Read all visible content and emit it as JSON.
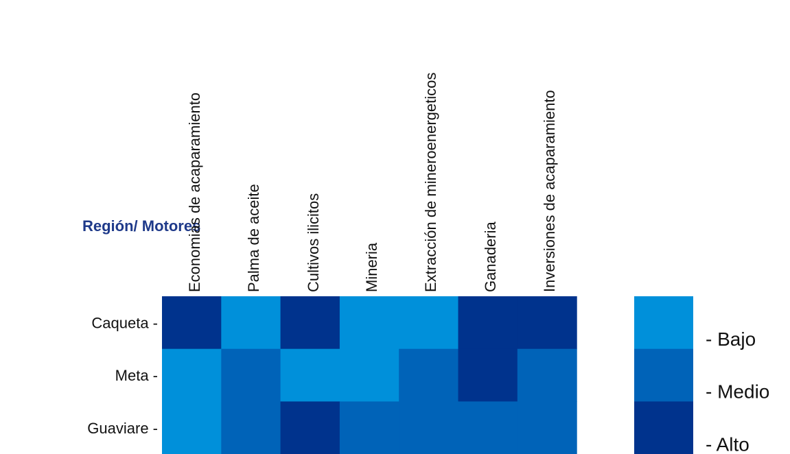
{
  "chart_data": {
    "type": "heatmap",
    "title": "",
    "corner_label": "Región/ Motores",
    "columns": [
      "Economias de acaparamiento",
      "Palma de aceite",
      "Cultivos ilicitos",
      "Mineria",
      "Extracción de mineroenergeticos",
      "Ganaderia",
      "Inversiones de acaparamiento"
    ],
    "rows": [
      "Caqueta -",
      "Meta -",
      "Guaviare -"
    ],
    "levels": [
      "- Bajo",
      "- Medio",
      "- Alto"
    ],
    "level_colors": {
      "- Bajo": "#0090da",
      "- Medio": "#0063b8",
      "- Alto": "#00338d"
    },
    "cells": [
      [
        "- Alto",
        "- Bajo",
        "- Alto",
        "- Bajo",
        "- Bajo",
        "- Alto",
        "- Alto"
      ],
      [
        "- Bajo",
        "- Medio",
        "- Bajo",
        "- Bajo",
        "- Medio",
        "- Alto",
        "- Medio"
      ],
      [
        "- Bajo",
        "- Medio",
        "- Alto",
        "- Medio",
        "- Medio",
        "- Medio",
        "- Medio"
      ]
    ],
    "legend_placement": "right"
  }
}
